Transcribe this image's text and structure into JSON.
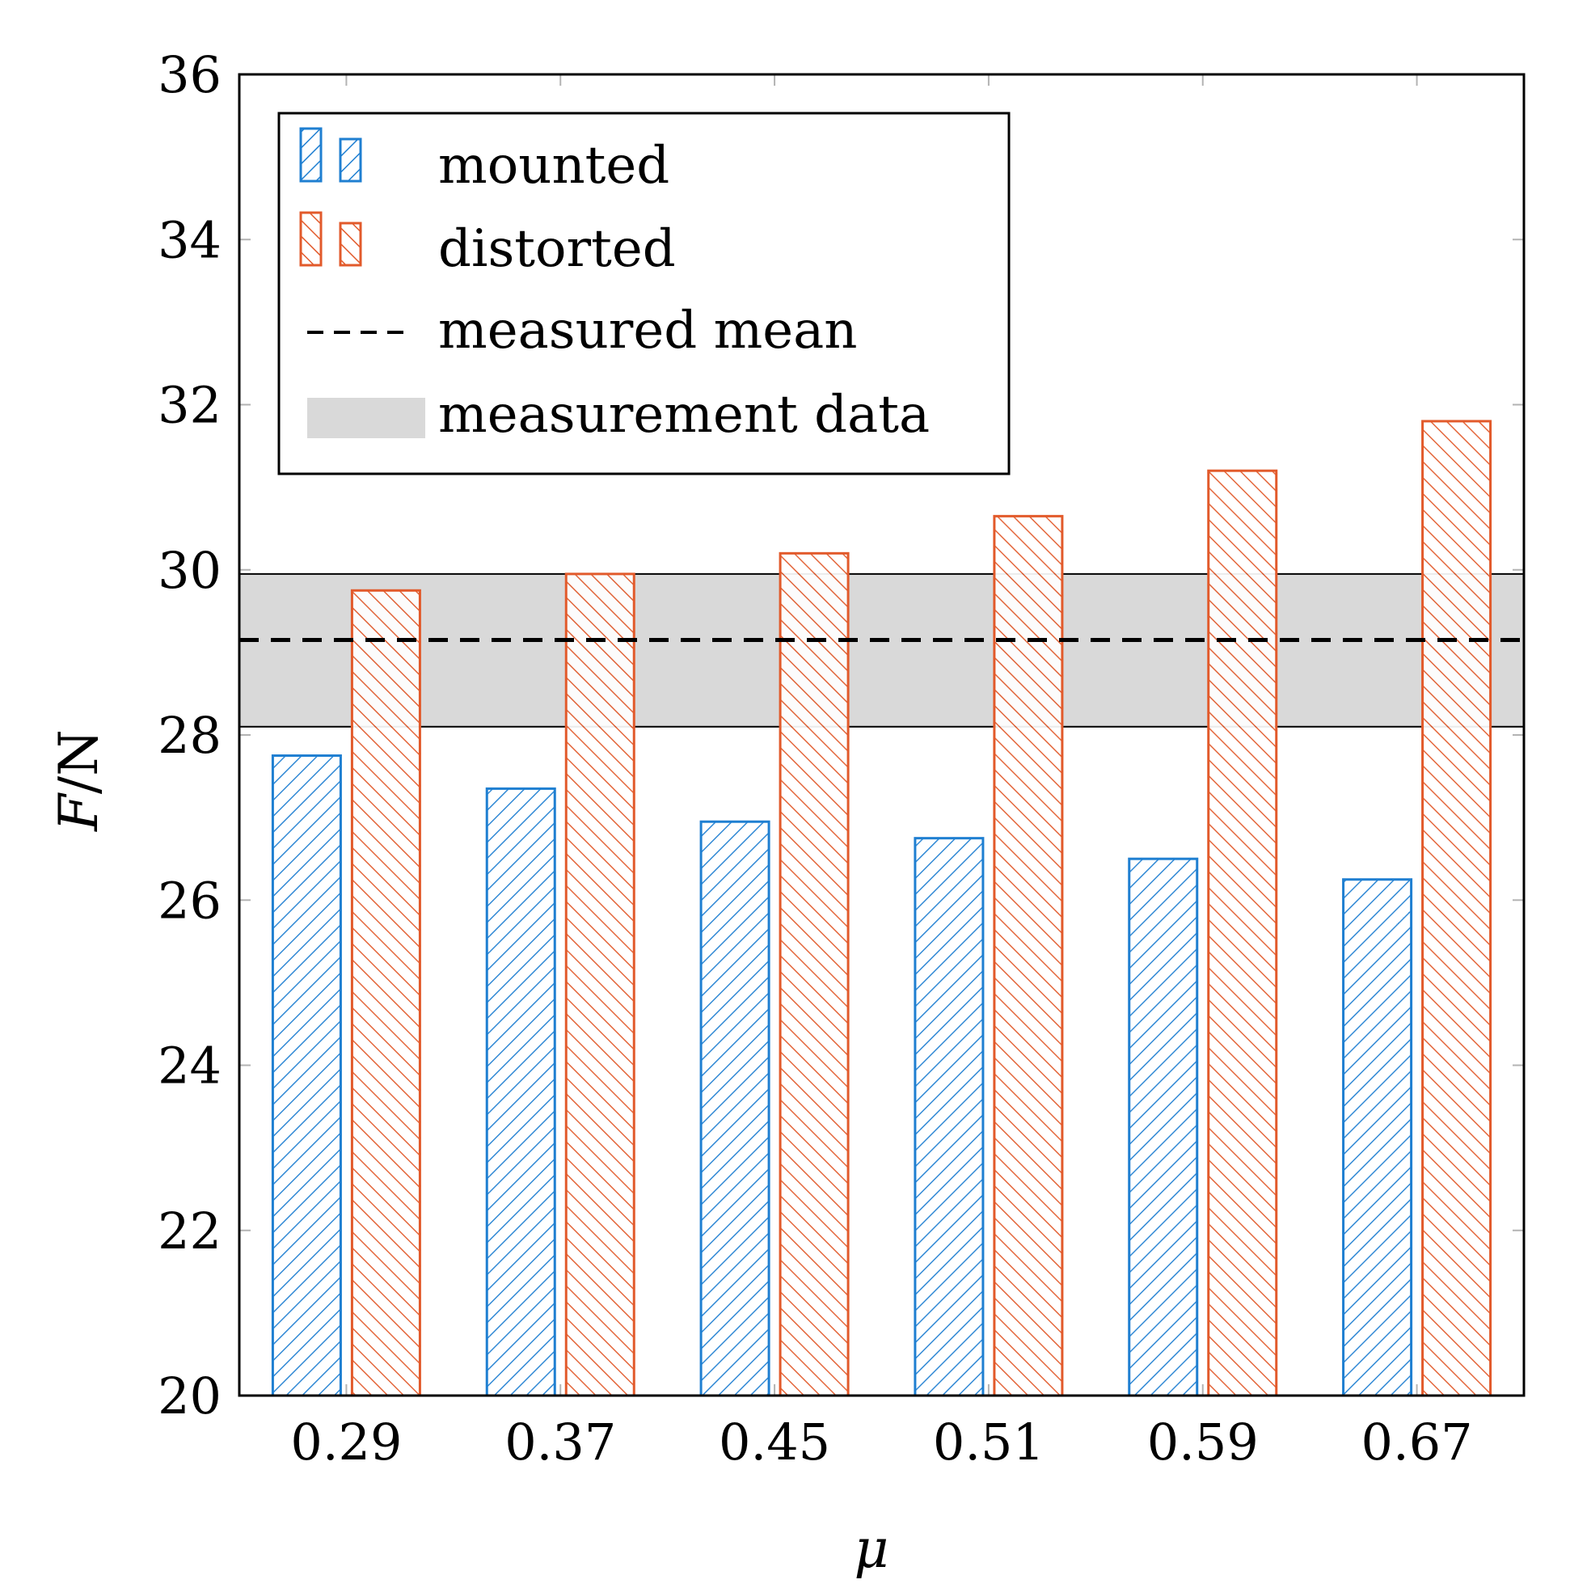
{
  "chart_data": {
    "type": "bar",
    "title": "",
    "xlabel": "μ",
    "ylabel": "F/N",
    "ylabel_var": "F",
    "ylabel_unit": "/N",
    "ylim": [
      20,
      36
    ],
    "yticks": [
      20,
      22,
      24,
      26,
      28,
      30,
      32,
      34,
      36
    ],
    "grid": false,
    "legend_position": "top-left",
    "categories": [
      "0.29",
      "0.37",
      "0.45",
      "0.51",
      "0.59",
      "0.67"
    ],
    "series": [
      {
        "name": "mounted",
        "color": "#1f7fd1",
        "hatch": "north-east",
        "values": [
          27.75,
          27.35,
          26.95,
          26.75,
          26.5,
          26.25
        ]
      },
      {
        "name": "distorted",
        "color": "#e25a2b",
        "hatch": "north-west",
        "values": [
          29.75,
          29.95,
          30.2,
          30.65,
          31.2,
          31.8
        ]
      }
    ],
    "reference_line": {
      "name": "measured mean",
      "value": 29.15,
      "color": "#000000",
      "style": "dashed"
    },
    "band": {
      "name": "measurement data",
      "low": 28.1,
      "high": 29.95,
      "color": "#d9d9d9"
    }
  }
}
